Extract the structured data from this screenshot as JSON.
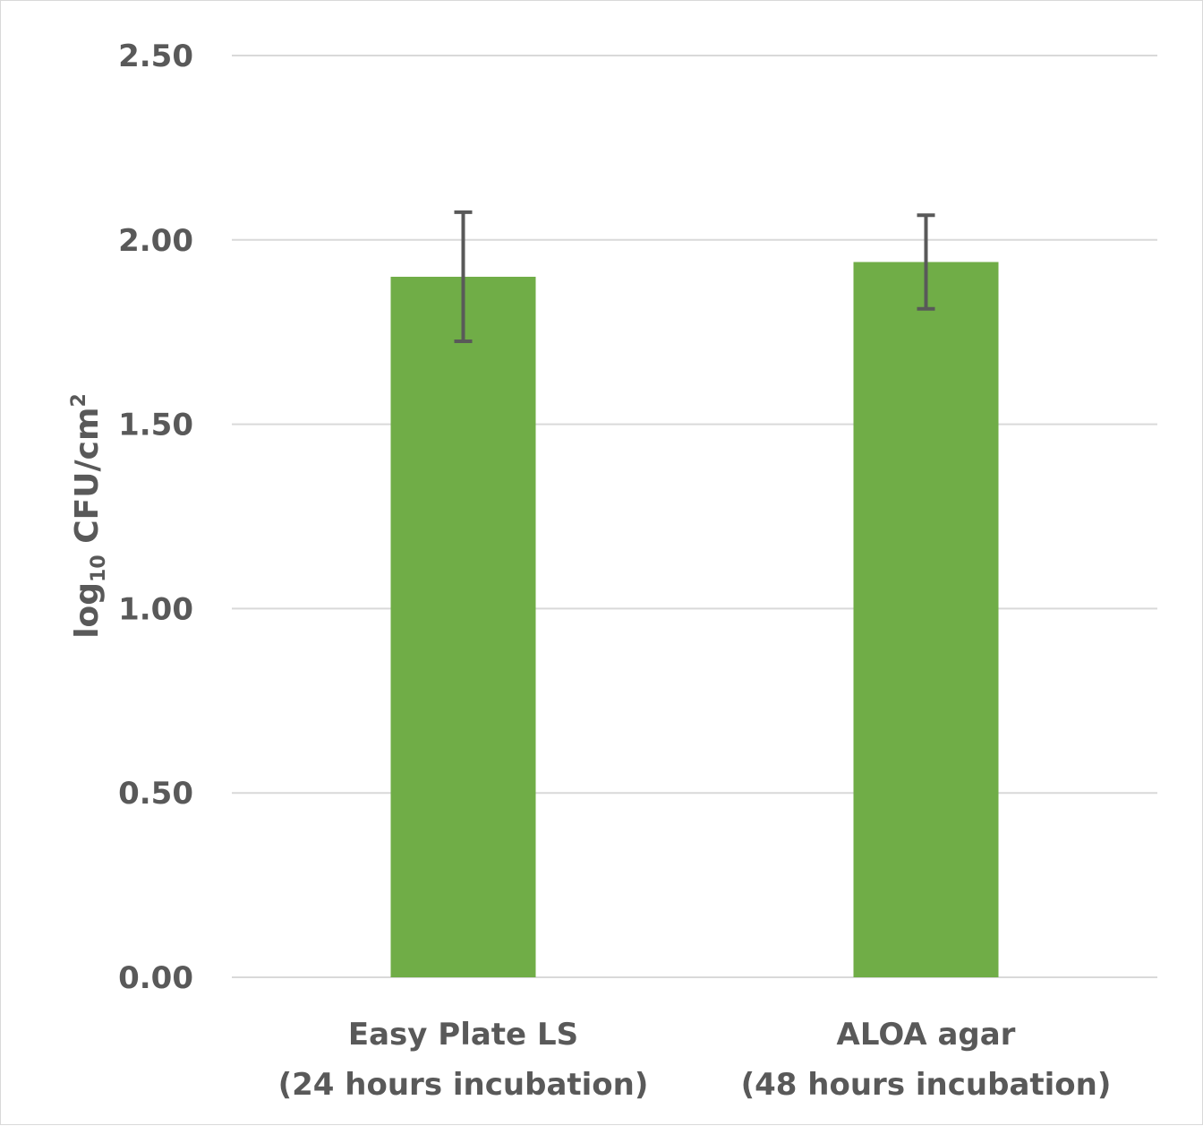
{
  "chart_data": {
    "type": "bar",
    "title": "",
    "xlabel": "",
    "ylabel": "log10 CFU/cm2",
    "ylabel_parts": {
      "base": "log",
      "sub": "10",
      "main": " CFU/cm",
      "sup": "2"
    },
    "categories": [
      [
        "Easy Plate LS",
        "(24 hours incubation)"
      ],
      [
        "ALOA agar",
        "(48 hours incubation)"
      ]
    ],
    "values": [
      1.9,
      1.94
    ],
    "error": [
      0.175,
      0.127
    ],
    "ylim": [
      0,
      2.5
    ],
    "yticks": [
      "0.00",
      "0.50",
      "1.00",
      "1.50",
      "2.00",
      "2.50"
    ],
    "grid": true,
    "legend": "none",
    "colors": {
      "bar": "#70AD47",
      "error_bar": "#595959",
      "grid": "#d9d9d9",
      "text": "#595959"
    }
  }
}
